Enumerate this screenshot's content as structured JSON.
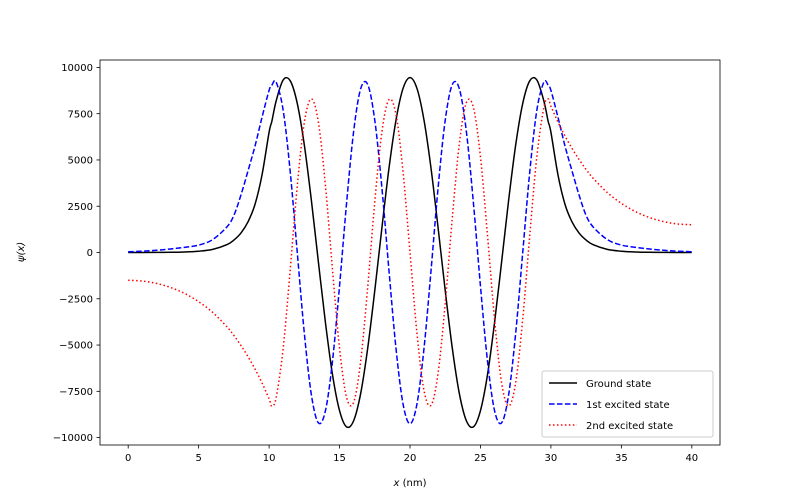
{
  "chart_data": {
    "type": "line",
    "title": "",
    "xlabel": "x (nm)",
    "xlabel_var": "x",
    "xlabel_unit": " (nm)",
    "ylabel": "ψ(x)",
    "ylabel_parts": {
      "sym": "ψ(",
      "var": "x",
      "close": ")"
    },
    "xlim": [
      -2,
      42
    ],
    "ylim": [
      -10400,
      10400
    ],
    "xticks": [
      0,
      5,
      10,
      15,
      20,
      25,
      30,
      35,
      40
    ],
    "yticks": [
      -10000,
      -7500,
      -5000,
      -2500,
      0,
      2500,
      5000,
      7500,
      10000
    ],
    "grid": false,
    "legend_position": "lower-right",
    "x": [
      0,
      1,
      2,
      3,
      4,
      5,
      6,
      7,
      7.5,
      8,
      8.5,
      9,
      9.5,
      10,
      10.2,
      10.5,
      11,
      11.5,
      12,
      12.5,
      13,
      13.5,
      14,
      14.5,
      15,
      15.5,
      16,
      16.5,
      17,
      17.5,
      18,
      18.5,
      19,
      19.5,
      20,
      20.5,
      21,
      21.5,
      22,
      22.5,
      23,
      23.5,
      24,
      24.5,
      25,
      25.5,
      26,
      26.5,
      27,
      27.5,
      28,
      28.5,
      29,
      29.5,
      29.8,
      30,
      30.5,
      31,
      31.5,
      32,
      32.5,
      33,
      34,
      35,
      36,
      37,
      38,
      39,
      40
    ],
    "series": [
      {
        "name": "Ground state",
        "color": "#000000",
        "style": "solid",
        "values": [
          0,
          0,
          5,
          10,
          30,
          70,
          170,
          420,
          670,
          1050,
          1650,
          2600,
          4200,
          6500,
          7100,
          8185,
          9320,
          9275,
          8055,
          5810,
          2825,
          -520,
          -3790,
          -6600,
          -8545,
          -9420,
          -9090,
          -7615,
          -5160,
          -2060,
          1295,
          4500,
          7125,
          8850,
          9450,
          8850,
          7125,
          4500,
          1295,
          -2060,
          -5160,
          -7615,
          -9090,
          -9420,
          -8545,
          -6600,
          -3790,
          -520,
          2825,
          5810,
          8055,
          9275,
          9320,
          8185,
          7100,
          6500,
          4200,
          2600,
          1650,
          1050,
          670,
          420,
          170,
          70,
          30,
          10,
          5,
          0,
          0
        ]
      },
      {
        "name": "1st excited state",
        "color": "#0000ff",
        "style": "dashed",
        "values": [
          40,
          70,
          120,
          190,
          280,
          400,
          700,
          1380,
          2000,
          3100,
          4400,
          5750,
          7310,
          8760,
          9050,
          9205,
          7680,
          4360,
          0,
          -4360,
          -7685,
          -9205,
          -8545,
          -5865,
          -1805,
          2680,
          6540,
          8850,
          9075,
          7150,
          3545,
          -905,
          -5140,
          -8155,
          -9250,
          -8155,
          -5140,
          -905,
          3545,
          7150,
          9075,
          8850,
          6540,
          2680,
          -1805,
          -5865,
          -8545,
          -9205,
          -7685,
          -4360,
          0,
          4360,
          7680,
          9205,
          9050,
          8760,
          7310,
          5750,
          4400,
          3100,
          2000,
          1380,
          700,
          400,
          280,
          190,
          120,
          70,
          40
        ]
      },
      {
        "name": "2nd excited state",
        "color": "#ff0000",
        "style": "dotted",
        "values": [
          -1500,
          -1542,
          -1669,
          -1888,
          -2211,
          -2657,
          -3240,
          -4008,
          -4480,
          -5022,
          -5620,
          -6293,
          -7050,
          -7905,
          -8300,
          -7835,
          -5175,
          -930,
          3600,
          7030,
          8300,
          7030,
          3600,
          -930,
          -5175,
          -7835,
          -8095,
          -5870,
          -1850,
          2740,
          6480,
          8250,
          7480,
          4415,
          0,
          -4415,
          -7480,
          -8250,
          -6480,
          -2740,
          1850,
          5870,
          8095,
          7835,
          5175,
          930,
          -3600,
          -7030,
          -8300,
          -7030,
          -3600,
          930,
          5175,
          7835,
          8300,
          7905,
          7050,
          6293,
          5620,
          5022,
          4480,
          4008,
          3240,
          2657,
          2211,
          1888,
          1669,
          1542,
          1500
        ]
      }
    ]
  }
}
